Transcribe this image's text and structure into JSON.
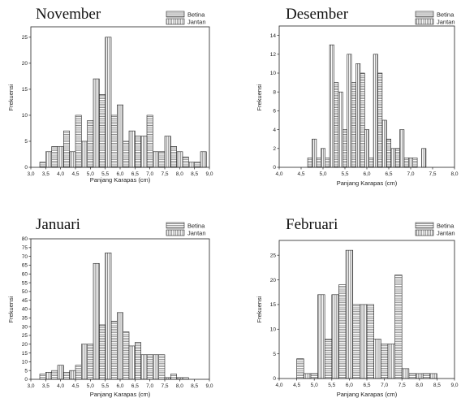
{
  "chart_data": [
    {
      "type": "bar",
      "title": "November",
      "xlabel": "Panjang Karapas (cm)",
      "ylabel": "Frekuensi",
      "xlim": [
        3.0,
        9.0
      ],
      "ylim": [
        0,
        27
      ],
      "xticks": [
        "3,0",
        "3,5",
        "4,0",
        "4,5",
        "5,0",
        "5,5",
        "6,0",
        "6,5",
        "7,0",
        "7,5",
        "8,0",
        "8,5",
        "9,0"
      ],
      "yticks": [
        "0",
        "5",
        "10",
        "15",
        "20",
        "25"
      ],
      "bin_width": 0.2,
      "series": [
        {
          "name": "Betina",
          "pattern": "horizontal",
          "x": [
            3.4,
            3.8,
            4.2,
            4.6,
            5.0,
            5.4,
            5.8,
            6.2,
            6.6,
            7.0,
            7.4,
            7.8,
            8.2,
            8.6
          ],
          "values": [
            1,
            4,
            7,
            10,
            9,
            14,
            10,
            5,
            6,
            10,
            3,
            4,
            2,
            1
          ]
        },
        {
          "name": "Jantan",
          "pattern": "vertical",
          "x": [
            3.6,
            4.0,
            4.4,
            4.8,
            5.2,
            5.6,
            6.0,
            6.4,
            6.8,
            7.2,
            7.6,
            8.0,
            8.4,
            8.8
          ],
          "values": [
            3,
            4,
            3,
            5,
            17,
            25,
            12,
            7,
            6,
            3,
            6,
            3,
            1,
            3
          ]
        }
      ]
    },
    {
      "type": "bar",
      "title": "Desember",
      "xlabel": "Panjang Karapas (cm)",
      "ylabel": "Frekuensi",
      "xlim": [
        4.0,
        8.0
      ],
      "ylim": [
        0,
        15
      ],
      "xticks": [
        "4,0",
        "4,5",
        "5,0",
        "5,5",
        "6,0",
        "6,5",
        "7,0",
        "7,5",
        "8,0"
      ],
      "yticks": [
        "0",
        "2",
        "4",
        "6",
        "8",
        "10",
        "12",
        "14"
      ],
      "bin_width": 0.1,
      "series": [
        {
          "name": "Betina",
          "pattern": "horizontal",
          "x": [
            4.7,
            4.9,
            5.1,
            5.3,
            5.5,
            5.7,
            5.9,
            6.1,
            6.3,
            6.5,
            6.7,
            6.9,
            7.1
          ],
          "values": [
            1,
            1,
            1,
            9,
            4,
            9,
            10,
            1,
            10,
            3,
            2,
            1,
            1
          ]
        },
        {
          "name": "Jantan",
          "pattern": "vertical",
          "x": [
            4.8,
            5.0,
            5.2,
            5.4,
            5.6,
            5.8,
            6.0,
            6.2,
            6.4,
            6.6,
            6.8,
            7.0,
            7.3
          ],
          "values": [
            3,
            2,
            13,
            8,
            12,
            11,
            4,
            12,
            5,
            2,
            4,
            1,
            2
          ]
        }
      ]
    },
    {
      "type": "bar",
      "title": "Januari",
      "xlabel": "Panjang Karapas (cm)",
      "ylabel": "Frekuensi",
      "xlim": [
        3.0,
        9.0
      ],
      "ylim": [
        0,
        80
      ],
      "xticks": [
        "3,0",
        "3,5",
        "4,0",
        "4,5",
        "5,0",
        "5,5",
        "6,0",
        "6,5",
        "7,0",
        "7,5",
        "8,0",
        "8,5",
        "9,0"
      ],
      "yticks": [
        "0",
        "5",
        "10",
        "15",
        "20",
        "25",
        "30",
        "35",
        "40",
        "45",
        "50",
        "55",
        "60",
        "65",
        "70",
        "75",
        "80"
      ],
      "bin_width": 0.2,
      "series": [
        {
          "name": "Betina",
          "pattern": "horizontal",
          "x": [
            3.4,
            3.8,
            4.2,
            4.6,
            5.0,
            5.4,
            5.8,
            6.2,
            6.6,
            7.0,
            7.4,
            7.8,
            8.2
          ],
          "values": [
            3,
            5,
            4,
            8,
            20,
            31,
            33,
            27,
            21,
            14,
            14,
            3,
            1
          ]
        },
        {
          "name": "Jantan",
          "pattern": "vertical",
          "x": [
            3.6,
            4.0,
            4.4,
            4.8,
            5.2,
            5.6,
            6.0,
            6.4,
            6.8,
            7.2,
            7.6,
            8.0
          ],
          "values": [
            4,
            8,
            5,
            20,
            66,
            72,
            38,
            19,
            14,
            14,
            1,
            1
          ]
        }
      ]
    },
    {
      "type": "bar",
      "title": "Februari",
      "xlabel": "Panjang Karapas (cm)",
      "ylabel": "Frekuensi",
      "xlim": [
        4.0,
        9.0
      ],
      "ylim": [
        0,
        28
      ],
      "xticks": [
        "4,0",
        "4,5",
        "5,0",
        "5,5",
        "6,0",
        "6,5",
        "7,0",
        "7,5",
        "8,0",
        "8,5",
        "9,0"
      ],
      "yticks": [
        "0",
        "5",
        "10",
        "15",
        "20",
        "25"
      ],
      "bin_width": 0.2,
      "series": [
        {
          "name": "Betina",
          "pattern": "horizontal",
          "x": [
            4.6,
            5.0,
            5.4,
            5.8,
            6.2,
            6.6,
            7.0,
            7.4,
            7.8,
            8.2
          ],
          "values": [
            4,
            1,
            8,
            19,
            15,
            15,
            7,
            21,
            1,
            1
          ]
        },
        {
          "name": "Jantan",
          "pattern": "vertical",
          "x": [
            4.8,
            5.2,
            5.6,
            6.0,
            6.4,
            6.8,
            7.2,
            7.6,
            8.0,
            8.4
          ],
          "values": [
            1,
            17,
            17,
            26,
            15,
            8,
            7,
            2,
            1,
            1
          ]
        }
      ]
    }
  ]
}
